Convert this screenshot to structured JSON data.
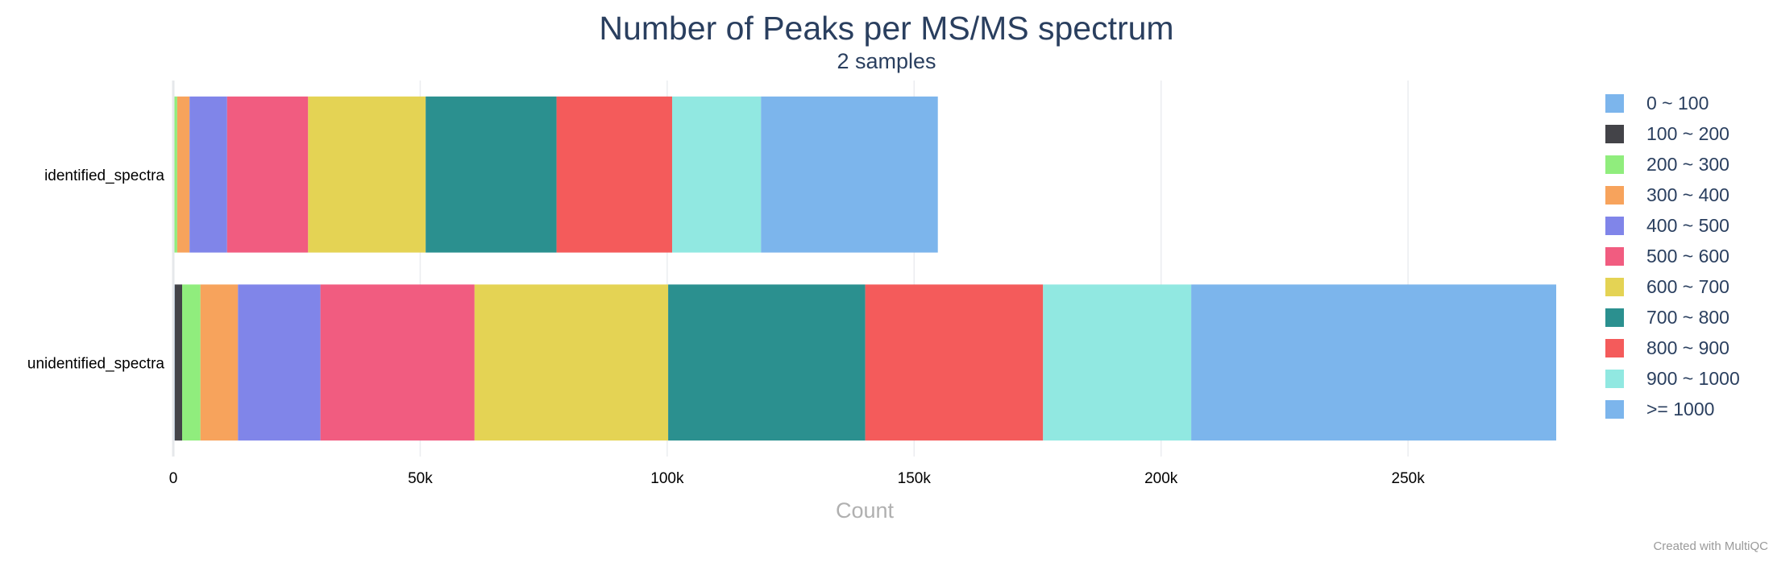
{
  "chart_data": {
    "type": "bar",
    "orientation": "horizontal",
    "stacked": true,
    "title": "Number of Peaks per MS/MS spectrum",
    "subtitle": "2 samples",
    "xlabel": "Count",
    "ylabel": "",
    "categories": [
      "identified_spectra",
      "unidentified_spectra"
    ],
    "xlim": [
      0,
      280000
    ],
    "xticks": [
      0,
      50000,
      100000,
      150000,
      200000,
      250000
    ],
    "xtick_labels": [
      "0",
      "50k",
      "100k",
      "150k",
      "200k",
      "250k"
    ],
    "grid": true,
    "legend_position": "right",
    "series": [
      {
        "name": "0 ~ 100",
        "color": "#7cb5ec",
        "values": [
          0,
          300
        ]
      },
      {
        "name": "100 ~ 200",
        "color": "#434348",
        "values": [
          100,
          1500
        ]
      },
      {
        "name": "200 ~ 300",
        "color": "#90ed7d",
        "values": [
          700,
          3700
        ]
      },
      {
        "name": "300 ~ 400",
        "color": "#f7a35c",
        "values": [
          2500,
          7600
        ]
      },
      {
        "name": "400 ~ 500",
        "color": "#8085e9",
        "values": [
          7600,
          16700
        ]
      },
      {
        "name": "500 ~ 600",
        "color": "#f15c80",
        "values": [
          16400,
          31200
        ]
      },
      {
        "name": "600 ~ 700",
        "color": "#e4d354",
        "values": [
          23800,
          39200
        ]
      },
      {
        "name": "700 ~ 800",
        "color": "#2b908f",
        "values": [
          26500,
          39900
        ]
      },
      {
        "name": "800 ~ 900",
        "color": "#f45b5b",
        "values": [
          23400,
          36000
        ]
      },
      {
        "name": "900 ~ 1000",
        "color": "#91e8e1",
        "values": [
          18000,
          30000
        ]
      },
      {
        "name": ">= 1000",
        "color": "#7cb5ec",
        "values": [
          35800,
          73900
        ]
      }
    ]
  },
  "footer": {
    "credit": "Created with MultiQC"
  }
}
